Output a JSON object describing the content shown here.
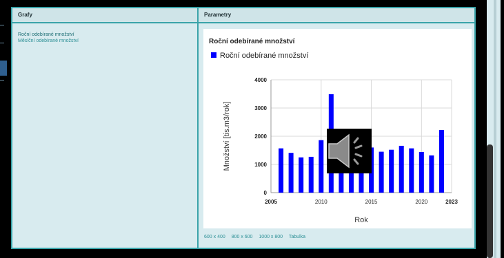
{
  "table": {
    "col_graphs": "Grafy",
    "col_params": "Parametry"
  },
  "graphs": [
    {
      "label": "Roční odebírané množství"
    },
    {
      "label": "Měsíční odebírané množství"
    }
  ],
  "size_options": [
    "600 x 400",
    "800 x 600",
    "1000 x 800",
    "Tabulka"
  ],
  "chart_data": {
    "type": "bar",
    "title": "Roční odebírané množství",
    "xlabel": "Rok",
    "ylabel": "Množství [tis.m3/rok]",
    "series": [
      {
        "name": "Roční odebírané množství",
        "color": "#0000ff",
        "x": [
          2006,
          2007,
          2008,
          2009,
          2010,
          2011,
          2012,
          2013,
          2014,
          2015,
          2016,
          2017,
          2018,
          2019,
          2020,
          2021,
          2022
        ],
        "values": [
          1570,
          1410,
          1250,
          1270,
          1860,
          3490,
          1650,
          1300,
          1400,
          1600,
          1450,
          1520,
          1660,
          1570,
          1440,
          1320,
          2220
        ]
      }
    ],
    "ylim": [
      0,
      4000
    ],
    "y_ticks": [
      "0",
      "1000",
      "2000",
      "3000",
      "4000"
    ],
    "x_ticks": [
      "2005",
      "2010",
      "2015",
      "2020",
      "2023"
    ],
    "grid": true,
    "legend": "top-left"
  }
}
